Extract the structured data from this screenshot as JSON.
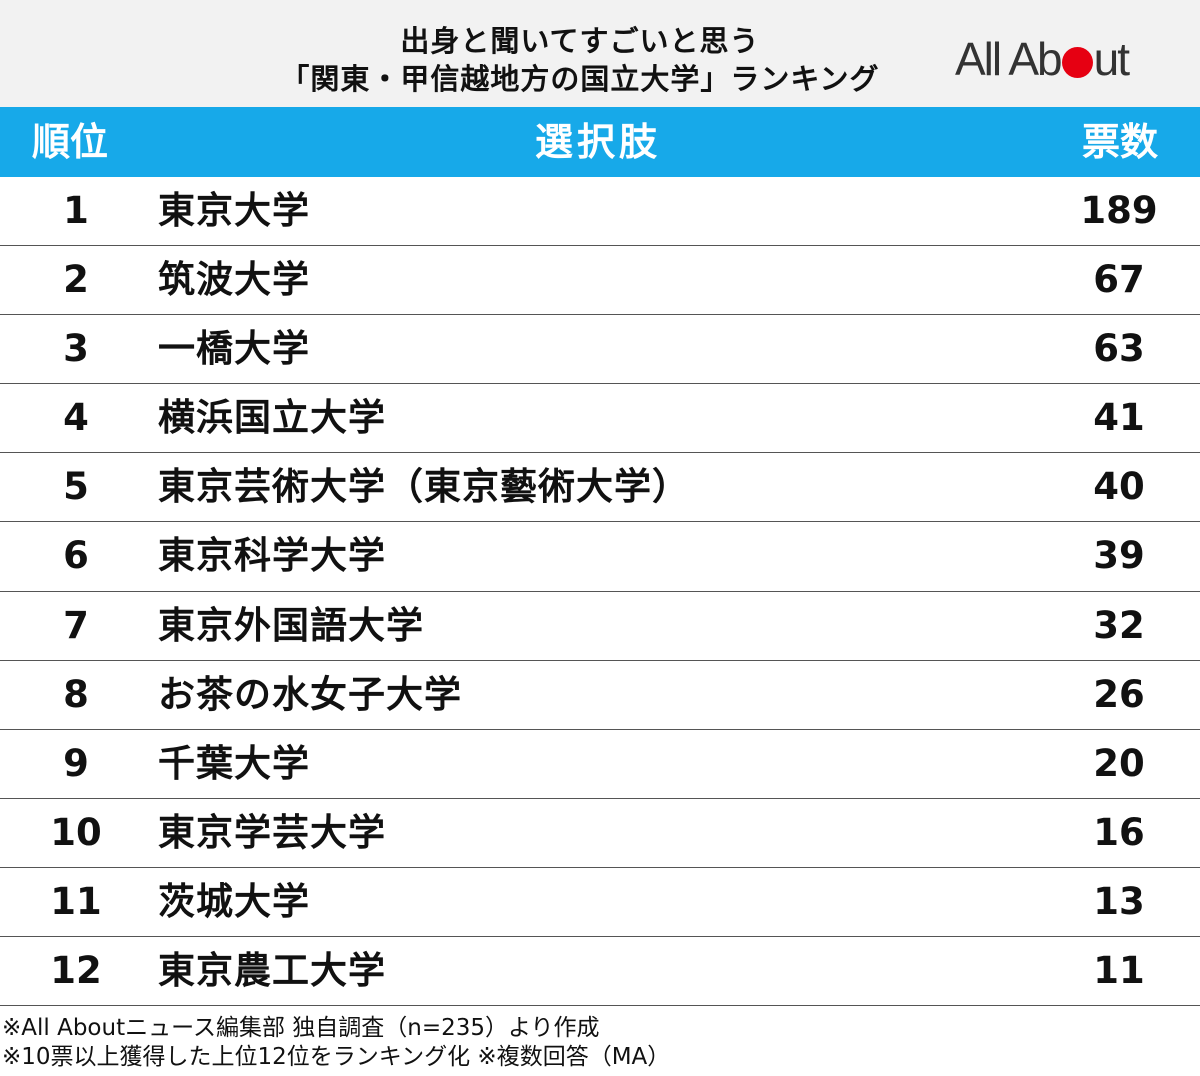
{
  "title_lines": [
    "出身と聞いてすごいと思う",
    "「関東・甲信越地方の国立大学」ランキング"
  ],
  "logo": {
    "text_before": "All Ab",
    "text_after": "ut",
    "dot_color": "#e60012"
  },
  "chart_data": {
    "type": "table",
    "columns": [
      "順位",
      "選択肢",
      "票数"
    ],
    "rows": [
      {
        "rank": "1",
        "name": "東京大学",
        "votes": "189"
      },
      {
        "rank": "2",
        "name": "筑波大学",
        "votes": "67"
      },
      {
        "rank": "3",
        "name": "一橋大学",
        "votes": "63"
      },
      {
        "rank": "4",
        "name": "横浜国立大学",
        "votes": "41"
      },
      {
        "rank": "5",
        "name": "東京芸術大学（東京藝術大学）",
        "votes": "40"
      },
      {
        "rank": "6",
        "name": "東京科学大学",
        "votes": "39"
      },
      {
        "rank": "7",
        "name": "東京外国語大学",
        "votes": "32"
      },
      {
        "rank": "8",
        "name": "お茶の水女子大学",
        "votes": "26"
      },
      {
        "rank": "9",
        "name": "千葉大学",
        "votes": "20"
      },
      {
        "rank": "10",
        "name": "東京学芸大学",
        "votes": "16"
      },
      {
        "rank": "11",
        "name": "茨城大学",
        "votes": "13"
      },
      {
        "rank": "12",
        "name": "東京農工大学",
        "votes": "11"
      }
    ]
  },
  "colors": {
    "header": "#17a9e9",
    "title_band": "#f2f2f2"
  },
  "footnotes": [
    "※All Aboutニュース編集部 独自調査（n=235）より作成",
    "※10票以上獲得した上位12位をランキング化 ※複数回答（MA）"
  ]
}
